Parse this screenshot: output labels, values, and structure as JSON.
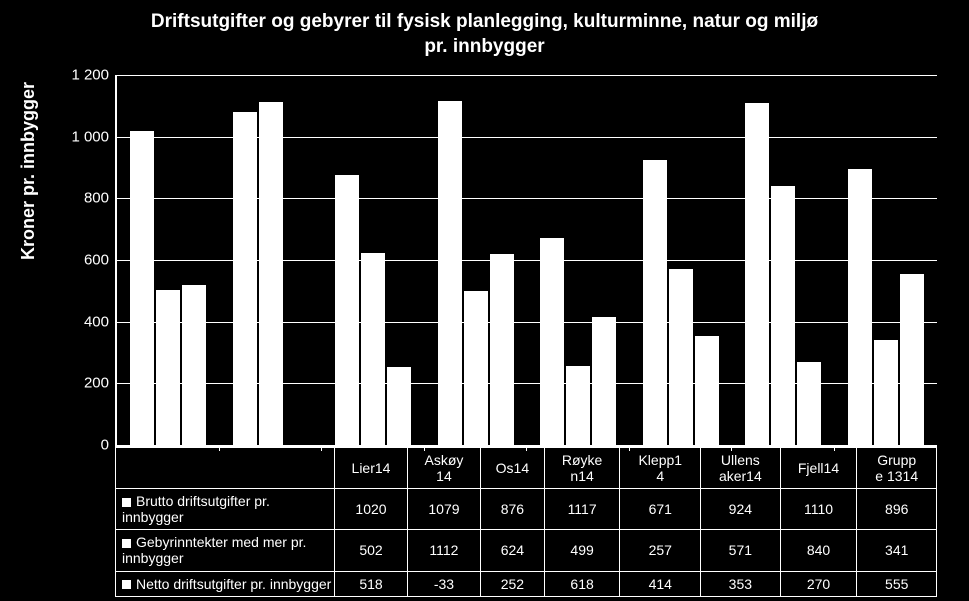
{
  "chart": {
    "type": "bar",
    "title_line1": "Driftsutgifter og gebyrer til fysisk planlegging, kulturminne, natur og miljø",
    "title_line2": "pr. innbygger",
    "title_fontsize": 19,
    "ylabel": "Kroner pr. innbygger",
    "label_fontsize": 18,
    "ylim_min": 0,
    "ylim_max": 1200,
    "ytick_step": 200,
    "yticks": [
      "0",
      "200",
      "400",
      "600",
      "800",
      "1 000",
      "1 200"
    ],
    "background_color": "#000000",
    "bar_color": "#ffffff",
    "grid_color": "#ffffff",
    "text_color": "#ffffff",
    "categories": [
      "Lier14",
      "Askøy14",
      "Os14",
      "Røyken14",
      "Klepp14",
      "Ullensaker14",
      "Fjell14",
      "Gruppe 1314"
    ],
    "categories_wrapped": [
      [
        "Lier14"
      ],
      [
        "Askøy",
        "14"
      ],
      [
        "Os14"
      ],
      [
        "Røyke",
        "n14"
      ],
      [
        "Klepp1",
        "4"
      ],
      [
        "Ullens",
        "aker14"
      ],
      [
        "Fjell14"
      ],
      [
        "Grupp",
        "e 1314"
      ]
    ],
    "series": [
      {
        "name": "Brutto driftsutgifter pr. innbygger",
        "values": [
          1020,
          1079,
          876,
          1117,
          671,
          924,
          1110,
          896
        ]
      },
      {
        "name": "Gebyrinntekter med mer pr. innbygger",
        "values": [
          502,
          1112,
          624,
          499,
          257,
          571,
          840,
          341
        ]
      },
      {
        "name": "Netto driftsutgifter pr. innbygger",
        "values": [
          518,
          -33,
          252,
          618,
          414,
          353,
          270,
          555
        ]
      }
    ]
  }
}
